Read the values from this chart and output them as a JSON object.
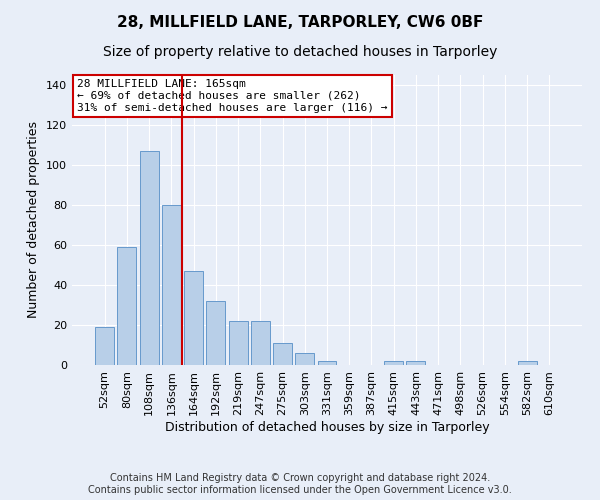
{
  "title": "28, MILLFIELD LANE, TARPORLEY, CW6 0BF",
  "subtitle": "Size of property relative to detached houses in Tarporley",
  "xlabel": "Distribution of detached houses by size in Tarporley",
  "ylabel": "Number of detached properties",
  "categories": [
    "52sqm",
    "80sqm",
    "108sqm",
    "136sqm",
    "164sqm",
    "192sqm",
    "219sqm",
    "247sqm",
    "275sqm",
    "303sqm",
    "331sqm",
    "359sqm",
    "387sqm",
    "415sqm",
    "443sqm",
    "471sqm",
    "498sqm",
    "526sqm",
    "554sqm",
    "582sqm",
    "610sqm"
  ],
  "values": [
    19,
    59,
    107,
    80,
    47,
    32,
    22,
    22,
    11,
    6,
    2,
    0,
    0,
    2,
    2,
    0,
    0,
    0,
    0,
    2,
    0
  ],
  "bar_color": "#b8cfe8",
  "bar_edge_color": "#6699cc",
  "property_line_x": 3.5,
  "annotation_text": "28 MILLFIELD LANE: 165sqm\n← 69% of detached houses are smaller (262)\n31% of semi-detached houses are larger (116) →",
  "annotation_box_facecolor": "#ffffff",
  "annotation_box_edgecolor": "#cc0000",
  "ylim": [
    0,
    145
  ],
  "yticks": [
    0,
    20,
    40,
    60,
    80,
    100,
    120,
    140
  ],
  "bg_color": "#e8eef8",
  "grid_color": "#ffffff",
  "footer": "Contains HM Land Registry data © Crown copyright and database right 2024.\nContains public sector information licensed under the Open Government Licence v3.0.",
  "title_fontsize": 11,
  "subtitle_fontsize": 10,
  "xlabel_fontsize": 9,
  "ylabel_fontsize": 9,
  "tick_fontsize": 8,
  "annot_fontsize": 8,
  "footer_fontsize": 7
}
